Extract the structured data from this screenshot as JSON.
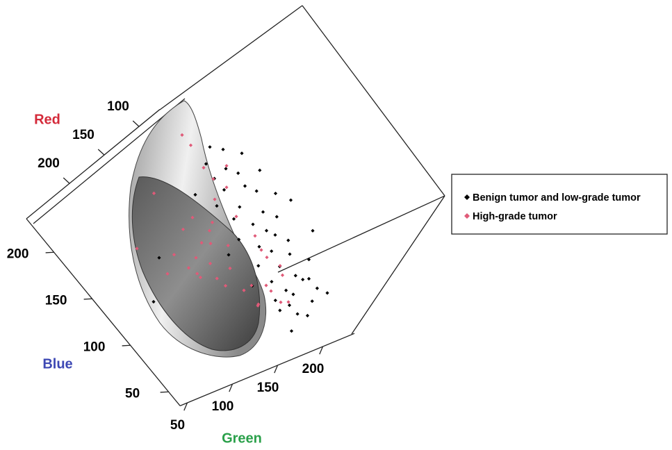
{
  "chart_data": {
    "type": "scatter3d",
    "axes": {
      "red": {
        "title": "Red",
        "color": "#d42a3a",
        "lim": [
          70,
          262
        ],
        "ticks": [
          100,
          150,
          200
        ]
      },
      "green": {
        "title": "Green",
        "color": "#2aa04a",
        "lim": [
          42,
          235
        ],
        "ticks": [
          50,
          100,
          150,
          200
        ]
      },
      "blue": {
        "title": "Blue",
        "color": "#3d48b4",
        "lim": [
          35,
          236
        ],
        "ticks": [
          50,
          100,
          150,
          200
        ]
      }
    },
    "legend": "right",
    "series": [
      {
        "name": "Benign tumor and low-grade tumor",
        "color": "#000000",
        "points": [
          [
            140,
            125,
            205
          ],
          [
            146,
            140,
            200
          ],
          [
            150,
            120,
            195
          ],
          [
            143,
            150,
            190
          ],
          [
            152,
            135,
            185
          ],
          [
            148,
            115,
            180
          ],
          [
            155,
            145,
            178
          ],
          [
            150,
            160,
            172
          ],
          [
            158,
            125,
            170
          ],
          [
            153,
            140,
            165
          ],
          [
            160,
            110,
            160
          ],
          [
            157,
            150,
            158
          ],
          [
            162,
            130,
            152
          ],
          [
            158,
            165,
            150
          ],
          [
            165,
            120,
            145
          ],
          [
            161,
            145,
            140
          ],
          [
            168,
            135,
            135
          ],
          [
            163,
            155,
            132
          ],
          [
            170,
            115,
            128
          ],
          [
            166,
            140,
            125
          ],
          [
            172,
            150,
            120
          ],
          [
            168,
            125,
            115
          ],
          [
            175,
            160,
            112
          ],
          [
            171,
            135,
            108
          ],
          [
            177,
            120,
            102
          ],
          [
            173,
            150,
            100
          ],
          [
            180,
            140,
            95
          ],
          [
            176,
            165,
            90
          ],
          [
            182,
            125,
            86
          ],
          [
            178,
            145,
            82
          ],
          [
            185,
            155,
            78
          ],
          [
            181,
            130,
            74
          ],
          [
            188,
            140,
            70
          ],
          [
            184,
            160,
            66
          ],
          [
            190,
            120,
            62
          ],
          [
            187,
            150,
            58
          ],
          [
            193,
            135,
            54
          ],
          [
            189,
            170,
            60
          ],
          [
            196,
            145,
            50
          ],
          [
            192,
            125,
            72
          ],
          [
            199,
            140,
            65
          ],
          [
            186,
            110,
            90
          ],
          [
            174,
            100,
            120
          ],
          [
            205,
            130,
            45
          ],
          [
            160,
            175,
            140
          ],
          [
            168,
            180,
            110
          ],
          [
            230,
            60,
            120
          ],
          [
            215,
            80,
            150
          ],
          [
            200,
            175,
            80
          ],
          [
            155,
            95,
            175
          ]
        ]
      },
      {
        "name": "High-grade tumor",
        "color": "#e05a78",
        "points": [
          [
            220,
            130,
            149
          ],
          [
            225,
            120,
            140
          ],
          [
            215,
            140,
            155
          ],
          [
            228,
            110,
            135
          ],
          [
            222,
            125,
            130
          ],
          [
            218,
            135,
            145
          ],
          [
            230,
            115,
            128
          ],
          [
            212,
            145,
            160
          ],
          [
            226,
            105,
            150
          ],
          [
            235,
            120,
            125
          ],
          [
            220,
            150,
            138
          ],
          [
            216,
            120,
            165
          ],
          [
            224,
            140,
            120
          ],
          [
            232,
            130,
            118
          ],
          [
            210,
            130,
            170
          ],
          [
            170,
            135,
            185
          ],
          [
            175,
            145,
            175
          ],
          [
            178,
            130,
            170
          ],
          [
            165,
            150,
            190
          ],
          [
            160,
            125,
            195
          ],
          [
            182,
            140,
            150
          ],
          [
            216,
            130,
            79
          ],
          [
            210,
            145,
            85
          ],
          [
            205,
            140,
            90
          ],
          [
            220,
            155,
            75
          ],
          [
            212,
            125,
            95
          ],
          [
            200,
            160,
            100
          ],
          [
            225,
            140,
            82
          ],
          [
            208,
            150,
            70
          ],
          [
            195,
            150,
            110
          ],
          [
            150,
            120,
            215
          ],
          [
            145,
            115,
            225
          ],
          [
            240,
            100,
            140
          ],
          [
            238,
            90,
            170
          ],
          [
            200,
            105,
            200
          ],
          [
            190,
            150,
            130
          ],
          [
            205,
            160,
            120
          ],
          [
            228,
            150,
            100
          ],
          [
            235,
            135,
            110
          ],
          [
            215,
            170,
            95
          ]
        ]
      }
    ]
  }
}
